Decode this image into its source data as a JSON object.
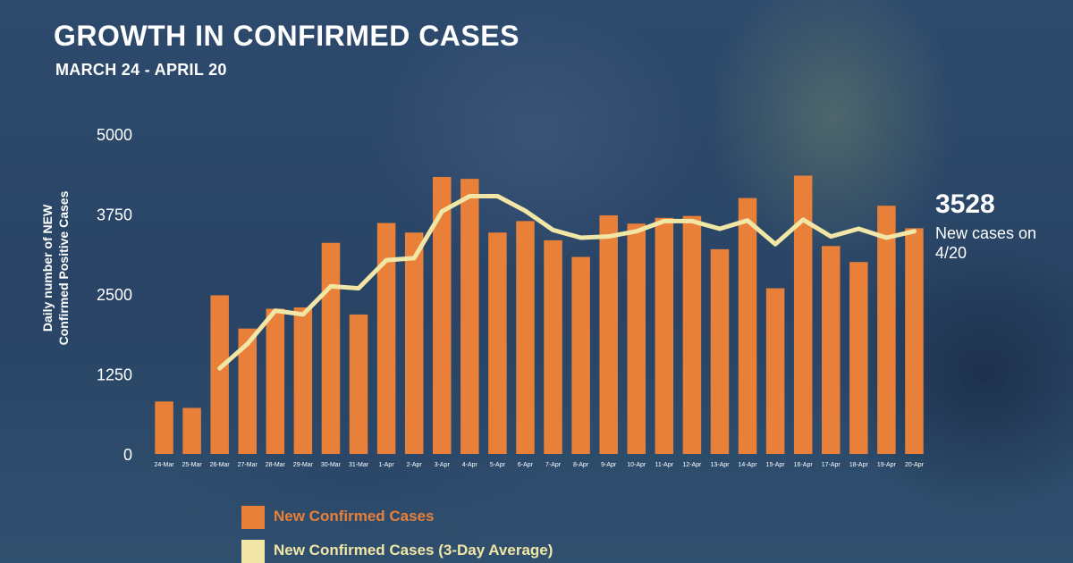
{
  "colors": {
    "bar": "#e8803a",
    "line": "#f1e6a6",
    "text": "#ffffff",
    "legend_bar_label": "#e8803a",
    "legend_line_label": "#f1e6a6"
  },
  "chart_data": {
    "type": "bar",
    "title": "GROWTH IN CONFIRMED CASES",
    "subtitle": "MARCH 24 - APRIL 20",
    "ylabel": "Daily number of NEW Confirmed Positive Cases",
    "xlabel": "",
    "ylim": [
      0,
      5000
    ],
    "yticks": [
      "0",
      "1250",
      "2500",
      "3750",
      "5000"
    ],
    "grid": false,
    "legend_placement": "bottom",
    "categories": [
      "24-Mar",
      "25-Mar",
      "26-Mar",
      "27-Mar",
      "28-Mar",
      "29-Mar",
      "30-Mar",
      "31-Mar",
      "1-Apr",
      "2-Apr",
      "3-Apr",
      "4-Apr",
      "5-Apr",
      "6-Apr",
      "7-Apr",
      "8-Apr",
      "9-Apr",
      "10-Apr",
      "11-Apr",
      "12-Apr",
      "13-Apr",
      "14-Apr",
      "15-Apr",
      "16-Apr",
      "17-Apr",
      "18-Apr",
      "19-Apr",
      "20-Apr"
    ],
    "series": [
      {
        "name": "New Confirmed Cases",
        "type": "bar",
        "values": [
          820,
          720,
          2480,
          1960,
          2270,
          2290,
          3300,
          2180,
          3610,
          3460,
          4330,
          4300,
          3460,
          3640,
          3340,
          3080,
          3730,
          3600,
          3690,
          3720,
          3200,
          4000,
          2590,
          4350,
          3250,
          3000,
          3880,
          3528
        ]
      },
      {
        "name": "New Confirmed Cases (3-Day Average)",
        "type": "line",
        "values": [
          null,
          null,
          1340,
          1720,
          2240,
          2180,
          2620,
          2590,
          3030,
          3060,
          3790,
          4030,
          4030,
          3800,
          3500,
          3380,
          3400,
          3480,
          3640,
          3640,
          3520,
          3650,
          3280,
          3660,
          3400,
          3520,
          3380,
          3480
        ]
      }
    ]
  },
  "callout": {
    "value": "3528",
    "text": "New cases on 4/20"
  },
  "legend": [
    {
      "label": "New Confirmed Cases"
    },
    {
      "label": "New Confirmed Cases (3-Day Average)"
    }
  ]
}
